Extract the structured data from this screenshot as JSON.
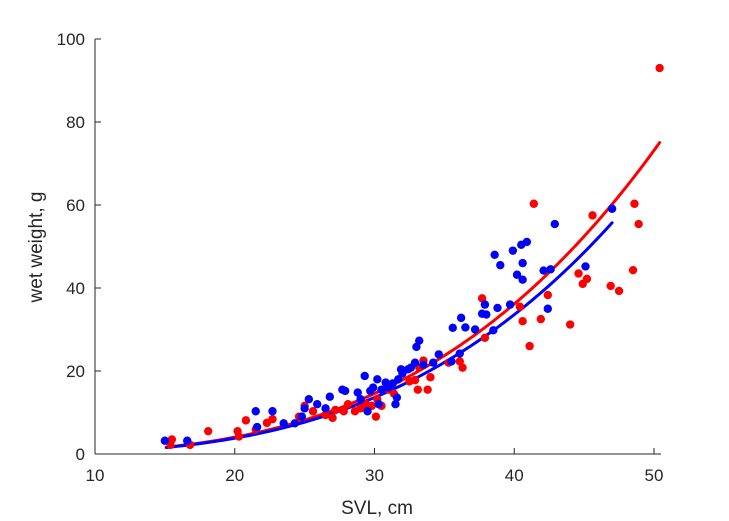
{
  "chart_data": {
    "type": "scatter",
    "xlabel": "SVL, cm",
    "ylabel": "wet weight, g",
    "xlim": [
      10,
      50.5
    ],
    "ylim": [
      0,
      100
    ],
    "xticks": [
      "10",
      "20",
      "30",
      "40",
      "50"
    ],
    "yticks": [
      "0",
      "20",
      "40",
      "60",
      "80",
      "100"
    ],
    "grid": false,
    "legend": "none",
    "series": [
      {
        "color": "#ff0000",
        "points": [
          [
            15.4,
            2.2
          ],
          [
            15.5,
            3.5
          ],
          [
            16.8,
            2.2
          ],
          [
            18.1,
            5.5
          ],
          [
            20.2,
            5.5
          ],
          [
            20.3,
            4.2
          ],
          [
            20.8,
            8.1
          ],
          [
            21.5,
            5.9
          ],
          [
            22.3,
            7.5
          ],
          [
            22.7,
            8.4
          ],
          [
            24.6,
            9.0
          ],
          [
            25.0,
            11.6
          ],
          [
            25.6,
            10.3
          ],
          [
            26.5,
            9.4
          ],
          [
            27.0,
            8.7
          ],
          [
            27.2,
            10.6
          ],
          [
            27.8,
            10.3
          ],
          [
            28.1,
            12.0
          ],
          [
            28.6,
            10.3
          ],
          [
            29.0,
            11.0
          ],
          [
            29.4,
            12.0
          ],
          [
            29.8,
            11.6
          ],
          [
            30.1,
            9.0
          ],
          [
            30.2,
            13.2
          ],
          [
            30.5,
            11.6
          ],
          [
            31.0,
            15.5
          ],
          [
            31.4,
            14.5
          ],
          [
            32.5,
            17.5
          ],
          [
            32.9,
            17.8
          ],
          [
            33.1,
            15.5
          ],
          [
            33.2,
            20.8
          ],
          [
            33.5,
            22.5
          ],
          [
            33.8,
            15.5
          ],
          [
            34.0,
            18.5
          ],
          [
            35.3,
            22.0
          ],
          [
            36.1,
            22.3
          ],
          [
            36.3,
            20.8
          ],
          [
            37.9,
            28.0
          ],
          [
            37.7,
            37.5
          ],
          [
            40.4,
            35.5
          ],
          [
            40.6,
            32.0
          ],
          [
            41.1,
            26.0
          ],
          [
            41.4,
            60.3
          ],
          [
            41.9,
            32.5
          ],
          [
            42.4,
            38.3
          ],
          [
            44.0,
            31.2
          ],
          [
            44.6,
            43.5
          ],
          [
            44.9,
            41.0
          ],
          [
            45.2,
            42.2
          ],
          [
            45.6,
            57.5
          ],
          [
            46.9,
            40.5
          ],
          [
            47.5,
            39.3
          ],
          [
            48.5,
            44.3
          ],
          [
            48.6,
            60.3
          ],
          [
            48.9,
            55.4
          ],
          [
            50.4,
            93.0
          ]
        ]
      },
      {
        "color": "#0000ff",
        "points": [
          [
            15.0,
            3.2
          ],
          [
            16.6,
            3.2
          ],
          [
            21.5,
            10.3
          ],
          [
            21.6,
            6.5
          ],
          [
            22.7,
            10.3
          ],
          [
            23.5,
            7.4
          ],
          [
            24.3,
            7.4
          ],
          [
            24.8,
            9.0
          ],
          [
            25.0,
            11.0
          ],
          [
            25.3,
            13.2
          ],
          [
            25.9,
            12.0
          ],
          [
            26.5,
            11.0
          ],
          [
            26.8,
            13.8
          ],
          [
            27.7,
            15.5
          ],
          [
            27.9,
            15.2
          ],
          [
            28.8,
            14.8
          ],
          [
            29.0,
            13.2
          ],
          [
            29.3,
            18.8
          ],
          [
            29.5,
            10.3
          ],
          [
            29.7,
            15.2
          ],
          [
            29.9,
            16.0
          ],
          [
            30.2,
            18.0
          ],
          [
            30.3,
            12.0
          ],
          [
            30.5,
            15.5
          ],
          [
            30.8,
            17.2
          ],
          [
            31.0,
            16.0
          ],
          [
            31.3,
            17.0
          ],
          [
            31.5,
            12.0
          ],
          [
            31.6,
            13.6
          ],
          [
            31.7,
            18.0
          ],
          [
            31.9,
            20.4
          ],
          [
            32.0,
            19.4
          ],
          [
            32.4,
            20.4
          ],
          [
            32.6,
            20.8
          ],
          [
            32.9,
            22.0
          ],
          [
            33.0,
            25.8
          ],
          [
            33.2,
            27.3
          ],
          [
            33.5,
            21.5
          ],
          [
            34.2,
            22.0
          ],
          [
            34.6,
            24.0
          ],
          [
            35.5,
            22.3
          ],
          [
            35.6,
            30.4
          ],
          [
            36.1,
            24.2
          ],
          [
            36.2,
            32.8
          ],
          [
            36.5,
            30.5
          ],
          [
            37.2,
            30.0
          ],
          [
            37.7,
            33.8
          ],
          [
            37.9,
            36.0
          ],
          [
            38.0,
            33.6
          ],
          [
            38.5,
            29.8
          ],
          [
            38.6,
            48.0
          ],
          [
            38.8,
            35.2
          ],
          [
            39.0,
            45.5
          ],
          [
            39.7,
            36.0
          ],
          [
            39.9,
            49.0
          ],
          [
            40.2,
            43.2
          ],
          [
            40.5,
            50.4
          ],
          [
            40.6,
            46.0
          ],
          [
            40.6,
            42.0
          ],
          [
            40.9,
            51.1
          ],
          [
            42.1,
            44.2
          ],
          [
            42.4,
            35.0
          ],
          [
            42.6,
            44.5
          ],
          [
            42.9,
            55.4
          ],
          [
            45.1,
            45.2
          ],
          [
            47.0,
            59.1
          ]
        ]
      }
    ],
    "fits": [
      {
        "color": "#ff0000",
        "type": "power",
        "a": 0.000313,
        "b": 3.16,
        "x_range": [
          15.3,
          50.4
        ]
      },
      {
        "color": "#0000ff",
        "type": "power",
        "a": 0.000313,
        "b": 3.14,
        "x_range": [
          15.1,
          47.0
        ]
      }
    ]
  }
}
